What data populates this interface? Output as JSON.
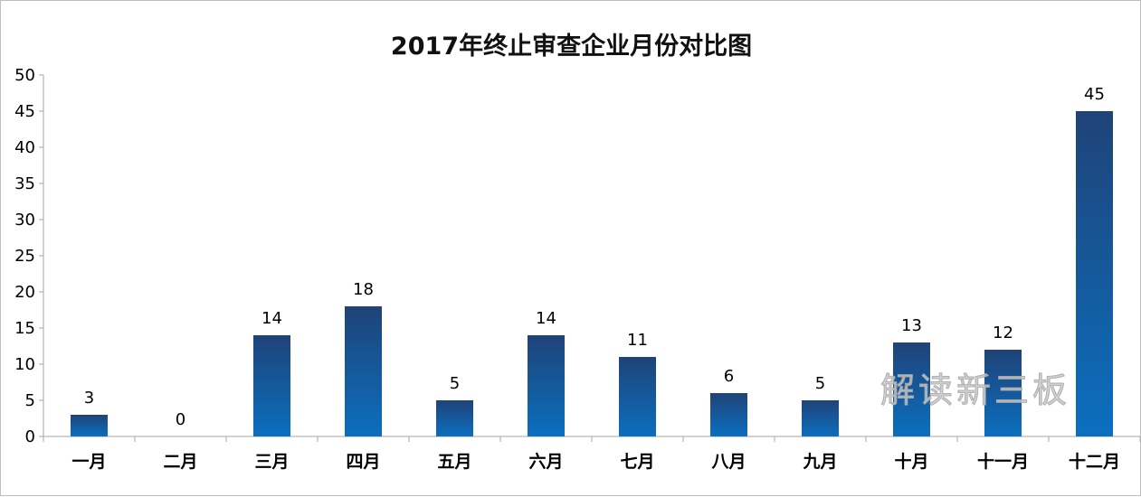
{
  "chart_data": {
    "type": "bar",
    "title": "2017年终止审查企业月份对比图",
    "categories": [
      "一月",
      "二月",
      "三月",
      "四月",
      "五月",
      "六月",
      "七月",
      "八月",
      "九月",
      "十月",
      "十一月",
      "十二月"
    ],
    "values": [
      3,
      0,
      14,
      18,
      5,
      14,
      11,
      6,
      5,
      13,
      12,
      45
    ],
    "y_ticks": [
      "0",
      "5",
      "10",
      "15",
      "20",
      "25",
      "30",
      "35",
      "40",
      "45",
      "50"
    ],
    "ylim": [
      0,
      50
    ],
    "grid": false,
    "legend": "none",
    "colors": {
      "bar_top": "#1f4378",
      "bar_bottom": "#0b6fbf",
      "axis": "#a6a6a6"
    }
  },
  "watermark": "解读新三板"
}
